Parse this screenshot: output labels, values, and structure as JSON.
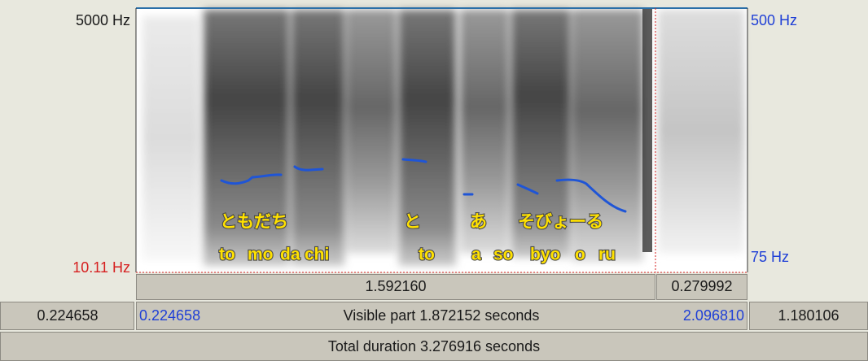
{
  "spectrogram": {
    "frequency_top": "5000 Hz",
    "frequency_bottom": "10.11 Hz",
    "pitch_top": "500 Hz",
    "pitch_bottom": "75 Hz",
    "kana": [
      "ともだち",
      "と",
      "あ",
      "そびょーる"
    ],
    "romaji": [
      "to",
      "mo",
      "da",
      "chi",
      "to",
      "a",
      "so",
      "byo",
      "o",
      "ru"
    ]
  },
  "time_bar": {
    "selection": "1.592160",
    "after_cursor": "0.279992",
    "left": "0.224658",
    "visible_start": "0.224658",
    "visible": "Visible part 1.872152 seconds",
    "visible_end": "2.096810",
    "right": "1.180106",
    "total": "Total duration 3.276916 seconds"
  }
}
